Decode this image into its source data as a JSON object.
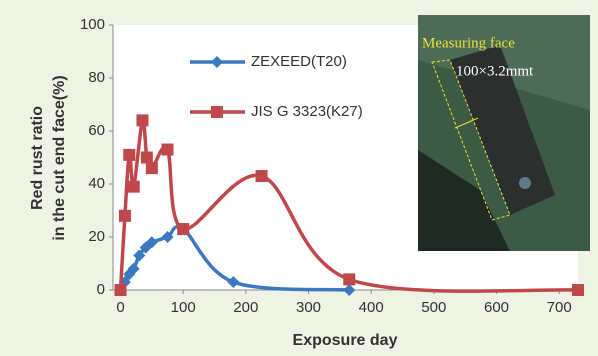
{
  "chart_data": {
    "type": "line",
    "y_label": [
      "Red rust ratio",
      "in the cut end face(%)"
    ],
    "x_label": "Exposure day",
    "xlim": [
      -12,
      730
    ],
    "xticks": [
      0,
      100,
      200,
      300,
      400,
      500,
      600,
      700
    ],
    "ylim": [
      0,
      100
    ],
    "yticks": [
      0,
      20,
      40,
      60,
      80,
      100
    ],
    "series": [
      {
        "name": "ZEXEED(T20)",
        "color": "#3b78c2",
        "marker": "diamond",
        "x": [
          0,
          7,
          14,
          21,
          30,
          40,
          50,
          75,
          100,
          180,
          365
        ],
        "values": [
          0,
          3,
          6,
          8,
          13,
          16,
          18,
          20,
          23,
          3,
          0
        ]
      },
      {
        "name": "JIS G 3323(K27)",
        "color": "#c0474a",
        "marker": "square",
        "x": [
          0,
          7,
          14,
          21,
          35,
          42,
          50,
          75,
          100,
          225,
          365,
          730
        ],
        "values": [
          0,
          28,
          51,
          39,
          64,
          50,
          46,
          53,
          23,
          43,
          4,
          0
        ]
      }
    ],
    "inset": {
      "caption": "Measuring face",
      "size": "100×3.2mmt"
    }
  }
}
